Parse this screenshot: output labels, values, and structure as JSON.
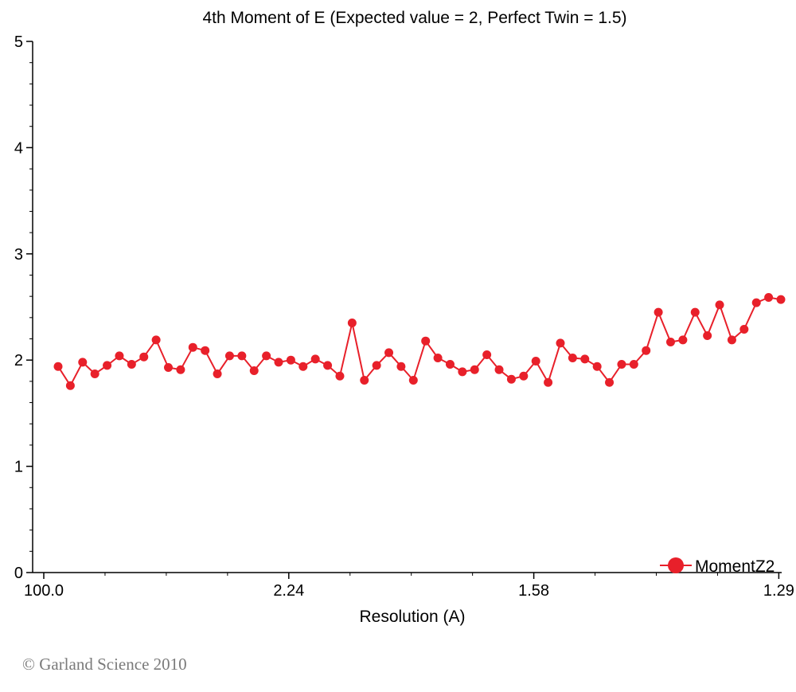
{
  "chart_data": {
    "type": "line",
    "title": "4th Moment of E (Expected value = 2, Perfect Twin = 1.5)",
    "xlabel": "Resolution (A)",
    "ylabel": "",
    "ylim": [
      0,
      5
    ],
    "y_ticks": [
      "0",
      "1",
      "2",
      "3",
      "4",
      "5"
    ],
    "x_tick_labels": [
      "100.0",
      "2.24",
      "1.58",
      "1.29"
    ],
    "x_tick_label_bin": [
      0,
      20,
      40,
      60
    ],
    "grid": false,
    "legend": {
      "position": "bottom-right",
      "entries": [
        "MomentZ2"
      ]
    },
    "colors": {
      "series": "#e8202a",
      "axis": "#000000"
    },
    "series": [
      {
        "name": "MomentZ2",
        "values": [
          1.94,
          1.76,
          1.98,
          1.87,
          1.95,
          2.04,
          1.96,
          2.03,
          2.19,
          1.93,
          1.91,
          2.12,
          2.09,
          1.87,
          2.04,
          2.04,
          1.9,
          2.04,
          1.98,
          2.0,
          1.94,
          2.01,
          1.95,
          1.85,
          2.35,
          1.81,
          1.95,
          2.07,
          1.94,
          1.81,
          2.18,
          2.02,
          1.96,
          1.89,
          1.91,
          2.05,
          1.91,
          1.82,
          1.85,
          1.99,
          1.79,
          2.16,
          2.02,
          2.01,
          1.94,
          1.79,
          1.96,
          1.96,
          2.09,
          2.45,
          2.17,
          2.19,
          2.45,
          2.23,
          2.52,
          2.19,
          2.29,
          2.54,
          2.59,
          2.57
        ]
      }
    ]
  },
  "footer": {
    "copyright": "© Garland Science 2010"
  }
}
